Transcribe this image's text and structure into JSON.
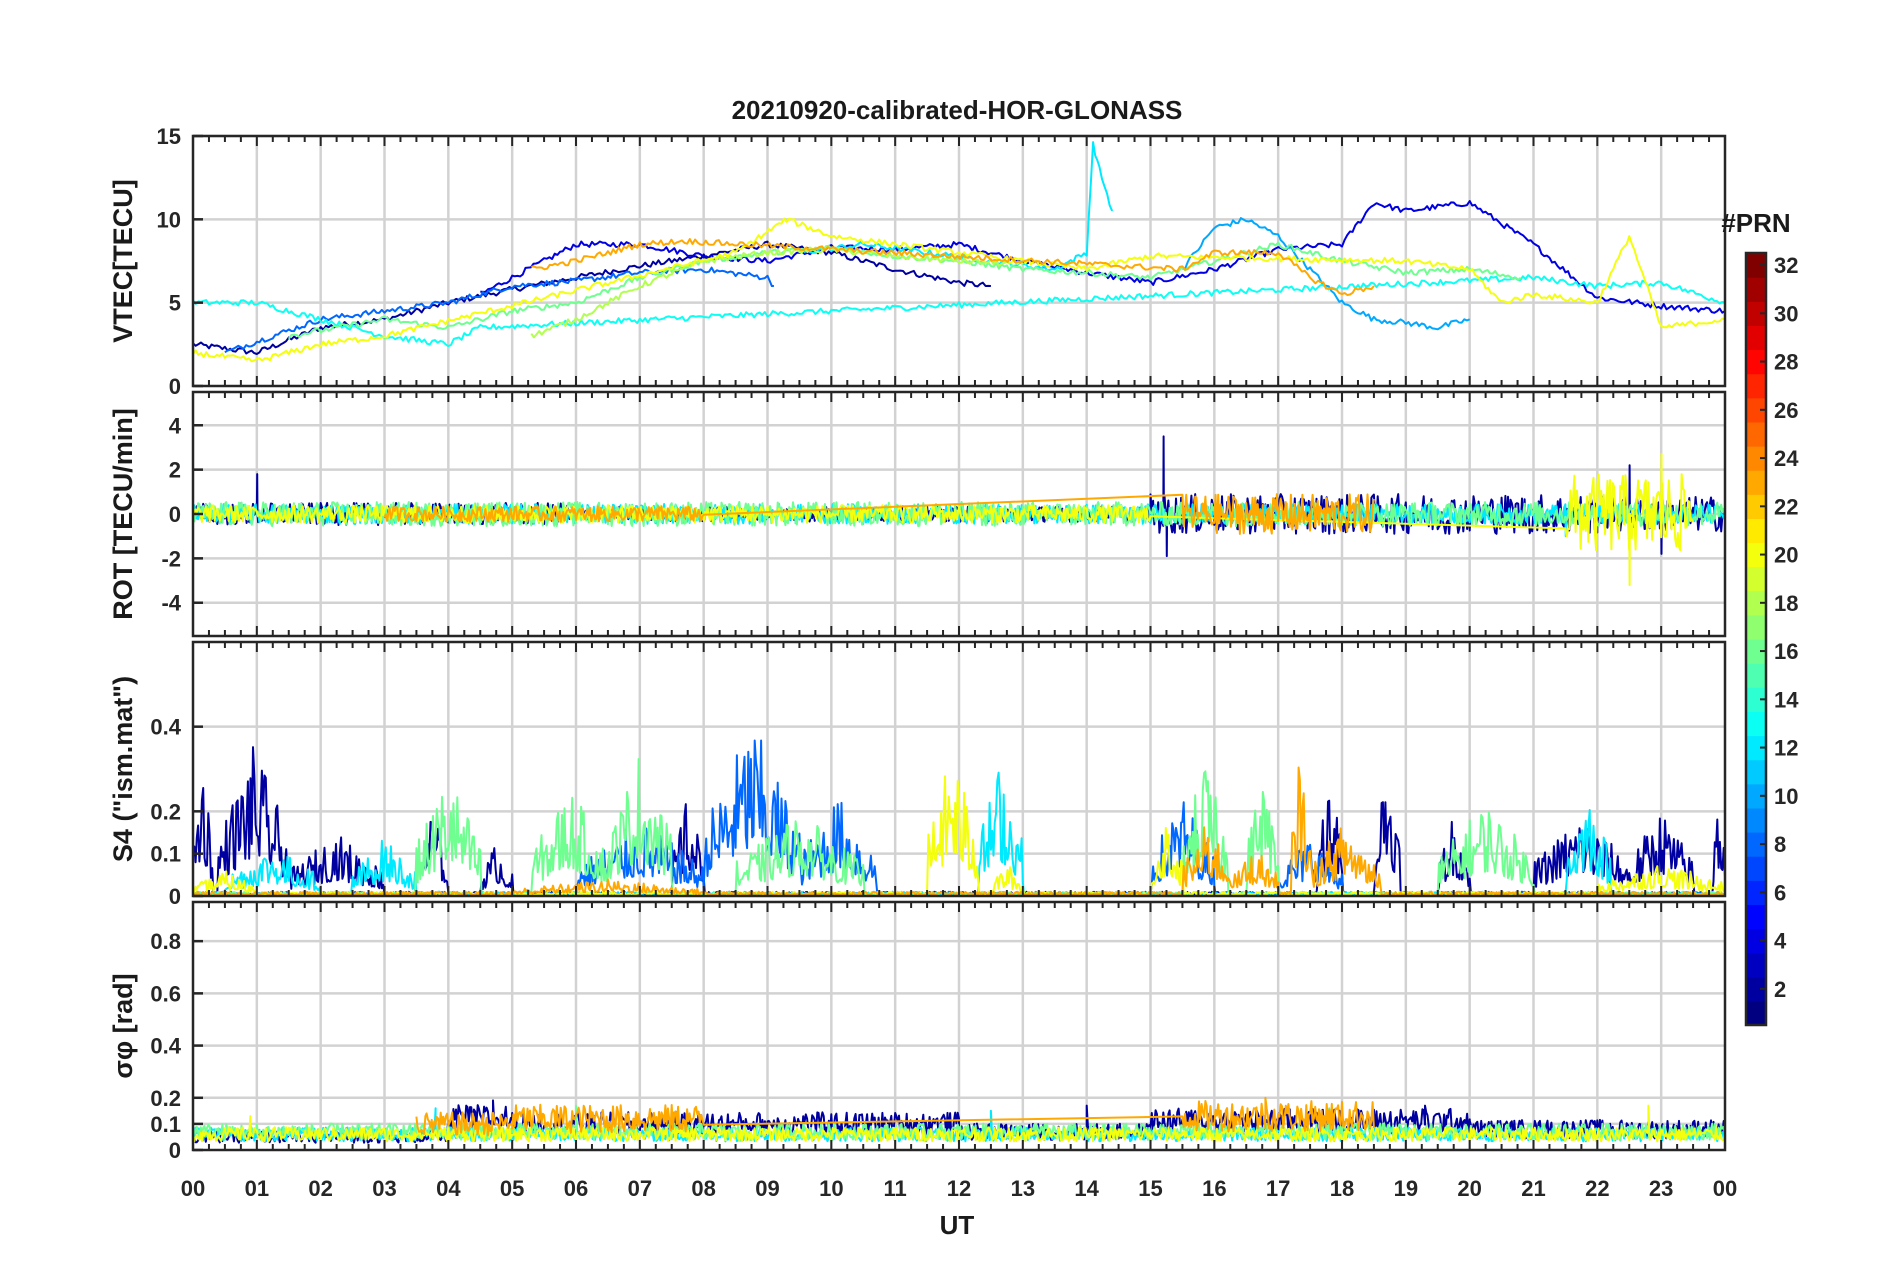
{
  "chart_data": {
    "type": "line",
    "title": "20210920-calibrated-HOR-GLONASS",
    "xlabel": "UT",
    "x_ticks": [
      "00",
      "01",
      "02",
      "03",
      "04",
      "05",
      "06",
      "07",
      "08",
      "09",
      "10",
      "11",
      "12",
      "13",
      "14",
      "15",
      "16",
      "17",
      "18",
      "19",
      "20",
      "21",
      "22",
      "23",
      "00"
    ],
    "x_range_hours": [
      0,
      24
    ],
    "panels": [
      {
        "id": "vtec",
        "ylabel": "VTEC[TECU]",
        "ylim": [
          0,
          15
        ],
        "yticks": [
          0,
          5,
          10,
          15
        ],
        "ytick_labels": [
          "0",
          "5",
          "10",
          "15"
        ],
        "series": [
          {
            "prn": 2,
            "name": "PRN 2",
            "x": [
              0,
              1,
              2,
              3,
              4,
              5,
              6,
              7,
              8,
              9,
              10,
              11,
              12,
              12.5
            ],
            "y": [
              2.5,
              2,
              3.5,
              4,
              5,
              5.8,
              6.5,
              7.2,
              7.8,
              8.5,
              8,
              7,
              6.2,
              6
            ]
          },
          {
            "prn": 4,
            "name": "PRN 4",
            "x": [
              4.5,
              6,
              7,
              8,
              9,
              10,
              11,
              12,
              13,
              14,
              15,
              16,
              17,
              18,
              18.5,
              19,
              20,
              21,
              22,
              23,
              24
            ],
            "y": [
              5.5,
              8.5,
              8.5,
              7.8,
              7.5,
              8.3,
              8.2,
              8.5,
              7.5,
              6.8,
              6.2,
              7,
              8.2,
              8.5,
              11,
              10.5,
              11,
              8.5,
              5.3,
              4.8,
              4.5
            ]
          },
          {
            "prn": 8,
            "name": "PRN 8",
            "x": [
              0.5,
              2,
              3,
              4,
              5,
              6,
              7,
              8,
              9,
              9.1
            ],
            "y": [
              2,
              4,
              4.5,
              5,
              6,
              6.3,
              6.8,
              7,
              6.5,
              6
            ]
          },
          {
            "prn": 10,
            "name": "PRN 10",
            "x": [
              15.5,
              16,
              16.5,
              17,
              17.5,
              18,
              18.5,
              19,
              19.5,
              20
            ],
            "y": [
              7,
              9.5,
              10,
              9,
              7,
              5,
              4,
              3.8,
              3.5,
              4
            ]
          },
          {
            "prn": 12,
            "name": "PRN 12",
            "x": [
              9.5,
              10.5,
              11.5,
              12.5,
              13.5,
              14,
              14.1,
              14.2,
              14.4
            ],
            "y": [
              8,
              8.5,
              8,
              7.5,
              7,
              8,
              14.5,
              13,
              10.5
            ]
          },
          {
            "prn": 13,
            "name": "PRN 13",
            "x": [
              0,
              1,
              2,
              3,
              4,
              4.5,
              21,
              22,
              23,
              24
            ],
            "y": [
              5,
              5,
              4,
              3,
              2.5,
              3.5,
              6.5,
              6,
              6.2,
              5
            ]
          },
          {
            "prn": 16,
            "name": "PRN 16",
            "x": [
              1.5,
              3,
              4,
              5,
              6,
              7,
              8,
              9,
              10,
              11,
              12,
              13,
              14,
              15,
              16,
              17,
              18,
              19,
              20,
              20.8
            ],
            "y": [
              3,
              4,
              3.5,
              4.5,
              5,
              6.5,
              7.5,
              8,
              8.3,
              7.8,
              7.5,
              7,
              6.8,
              6.5,
              7.5,
              8.5,
              7.5,
              6.8,
              7,
              6.5
            ]
          },
          {
            "prn": 18,
            "name": "PRN 18",
            "x": [
              5.3,
              6,
              7,
              8,
              9,
              10,
              11,
              12,
              13
            ],
            "y": [
              3,
              4,
              6,
              7.5,
              8,
              8.2,
              7.8,
              7.5,
              7.3
            ]
          },
          {
            "prn": 20,
            "name": "PRN 20",
            "x": [
              0,
              1,
              2,
              3,
              8.5,
              9.3,
              10,
              11,
              12,
              13,
              14,
              15,
              19,
              20,
              20.5,
              21,
              22,
              22.5,
              23,
              24
            ],
            "y": [
              2,
              1.5,
              2.5,
              3,
              8,
              10,
              9,
              8.5,
              8,
              7.5,
              7,
              7.8,
              7.5,
              7,
              5,
              5.5,
              5,
              9,
              3.5,
              4
            ]
          },
          {
            "prn": 23,
            "name": "PRN 23",
            "x": [
              5.3,
              6,
              7,
              7.7,
              15.5,
              16,
              17,
              17.5,
              18,
              18.5
            ],
            "y": [
              7,
              7.5,
              8.5,
              8.7,
              7,
              8,
              8,
              6.5,
              5.5,
              6
            ]
          }
        ]
      },
      {
        "id": "rot",
        "ylabel": "ROT [TECU/min]",
        "ylim": [
          -5.5,
          5.5
        ],
        "yticks": [
          -4,
          -2,
          0,
          2,
          4
        ],
        "ytick_labels": [
          "-4",
          "-2",
          "0",
          "2",
          "4"
        ],
        "series": [
          {
            "prn": 2,
            "name": "PRN 2",
            "noise": [
              [
                0,
                6,
                0.5
              ],
              [
                6,
                15,
                0.35
              ],
              [
                15,
                22,
                0.9
              ],
              [
                22,
                24,
                0.8
              ]
            ],
            "spikes": [
              [
                1.0,
                1.8
              ],
              [
                15.2,
                3.5
              ],
              [
                15.25,
                -1.9
              ],
              [
                22.5,
                2.2
              ],
              [
                23,
                -1.8
              ]
            ]
          },
          {
            "prn": 12,
            "name": "PRN 12",
            "noise": [
              [
                0,
                24,
                0.45
              ]
            ],
            "spikes": [
              [
                21.5,
                -1.0
              ]
            ]
          },
          {
            "prn": 16,
            "name": "PRN 16",
            "noise": [
              [
                0,
                24,
                0.55
              ]
            ],
            "spikes": []
          },
          {
            "prn": 20,
            "name": "PRN 20",
            "noise": [
              [
                0,
                15,
                0.4
              ],
              [
                21.5,
                23.5,
                1.8
              ]
            ],
            "spikes": [
              [
                22.5,
                -3.2
              ],
              [
                23,
                2.7
              ]
            ]
          },
          {
            "prn": 23,
            "name": "PRN 23",
            "noise": [
              [
                3,
                8,
                0.35
              ],
              [
                15.5,
                18.5,
                0.9
              ]
            ],
            "spikes": []
          }
        ]
      },
      {
        "id": "s4",
        "ylabel": "S4 (\"ism.mat\")",
        "ylim": [
          0,
          0.6
        ],
        "yticks": [
          0,
          0.1,
          0.2,
          0.4
        ],
        "ytick_labels": [
          "0",
          "0.1",
          "0.2",
          "0.4"
        ],
        "series": [
          {
            "prn": 2,
            "name": "PRN 2",
            "bursts": [
              [
                0,
                0.3,
                0.35
              ],
              [
                0.4,
                1.5,
                0.36
              ],
              [
                1.5,
                3,
                0.15
              ],
              [
                3.5,
                4,
                0.22
              ],
              [
                4.5,
                5,
                0.13
              ],
              [
                7.5,
                8,
                0.24
              ],
              [
                17.6,
                18,
                0.3
              ],
              [
                18.5,
                18.9,
                0.35
              ],
              [
                19.5,
                20,
                0.2
              ],
              [
                21,
                22.5,
                0.2
              ],
              [
                22.5,
                23.5,
                0.21
              ],
              [
                23.8,
                24,
                0.25
              ]
            ]
          },
          {
            "prn": 8,
            "name": "PRN 8",
            "bursts": [
              [
                6,
                8,
                0.18
              ],
              [
                8,
                9.5,
                0.42
              ],
              [
                9.5,
                10.7,
                0.24
              ],
              [
                15,
                16,
                0.24
              ],
              [
                17,
                18,
                0.15
              ]
            ]
          },
          {
            "prn": 12,
            "name": "PRN 12",
            "bursts": [
              [
                0.5,
                2,
                0.12
              ],
              [
                2.5,
                3.5,
                0.14
              ],
              [
                12.3,
                13,
                0.33
              ],
              [
                21.5,
                22.2,
                0.26
              ]
            ]
          },
          {
            "prn": 16,
            "name": "PRN 16",
            "bursts": [
              [
                3.5,
                4.5,
                0.3
              ],
              [
                5.3,
                6.5,
                0.26
              ],
              [
                6.5,
                7.5,
                0.35
              ],
              [
                8.5,
                10.5,
                0.2
              ],
              [
                15.5,
                16.2,
                0.33
              ],
              [
                16.5,
                17,
                0.3
              ],
              [
                19.5,
                21,
                0.23
              ]
            ]
          },
          {
            "prn": 20,
            "name": "PRN 20",
            "bursts": [
              [
                0,
                1,
                0.06
              ],
              [
                11.5,
                12.3,
                0.35
              ],
              [
                12.5,
                13,
                0.08
              ],
              [
                15,
                15.5,
                0.2
              ],
              [
                22,
                24,
                0.08
              ]
            ]
          },
          {
            "prn": 23,
            "name": "PRN 23",
            "bursts": [
              [
                5,
                8,
                0.04
              ],
              [
                15.5,
                16.3,
                0.18
              ],
              [
                16.3,
                17,
                0.12
              ],
              [
                17.2,
                17.5,
                0.35
              ],
              [
                17.5,
                18.6,
                0.18
              ]
            ]
          }
        ]
      },
      {
        "id": "sigma_phi",
        "ylabel": "σφ [rad]",
        "ylim": [
          0,
          0.95
        ],
        "yticks": [
          0,
          0.1,
          0.2,
          0.4,
          0.6,
          0.8
        ],
        "ytick_labels": [
          "0",
          "0.1",
          "0.2",
          "0.4",
          "0.6",
          "0.8"
        ],
        "series": [
          {
            "prn": 2,
            "name": "PRN 2",
            "level": [
              [
                0,
                4,
                0.05
              ],
              [
                4,
                5,
                0.12
              ],
              [
                5,
                12,
                0.1
              ],
              [
                12,
                15,
                0.07
              ],
              [
                15,
                20,
                0.11
              ],
              [
                20,
                24,
                0.08
              ]
            ],
            "peak": [
              [
                4.7,
                0.19
              ],
              [
                14,
                0.17
              ],
              [
                19.3,
                0.17
              ]
            ]
          },
          {
            "prn": 12,
            "name": "PRN 12",
            "level": [
              [
                0,
                24,
                0.06
              ]
            ],
            "peak": [
              [
                3.8,
                0.16
              ],
              [
                12.5,
                0.15
              ]
            ]
          },
          {
            "prn": 16,
            "name": "PRN 16",
            "level": [
              [
                0,
                24,
                0.07
              ]
            ],
            "peak": [
              [
                6,
                0.17
              ],
              [
                17.8,
                0.16
              ]
            ]
          },
          {
            "prn": 20,
            "name": "PRN 20",
            "level": [
              [
                0,
                24,
                0.06
              ]
            ],
            "peak": [
              [
                0.9,
                0.13
              ],
              [
                22.8,
                0.17
              ]
            ]
          },
          {
            "prn": 23,
            "name": "PRN 23",
            "level": [
              [
                3.5,
                5,
                0.1
              ],
              [
                5,
                8,
                0.12
              ],
              [
                15.5,
                18.5,
                0.13
              ]
            ],
            "peak": [
              [
                16.8,
                0.2
              ]
            ]
          }
        ]
      }
    ],
    "colorbar": {
      "title": "#PRN",
      "min": 1,
      "max": 32,
      "ticks": [
        2,
        4,
        6,
        8,
        10,
        12,
        14,
        16,
        18,
        20,
        22,
        24,
        26,
        28,
        30,
        32
      ],
      "colormap": "jet"
    }
  }
}
